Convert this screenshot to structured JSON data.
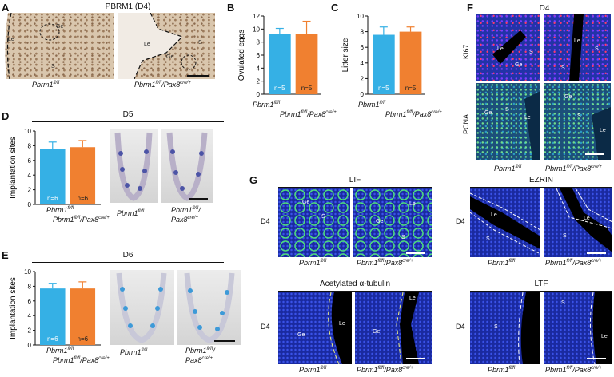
{
  "panels": {
    "A": {
      "letter": "A",
      "title": "PBRM1 (D4)",
      "genotypes": [
        "Pbrm1",
        "Pbrm1",
        "Pax8"
      ],
      "labels": {
        "le": "Le",
        "ge": "Ge",
        "s": "S"
      }
    },
    "B": {
      "letter": "B"
    },
    "C": {
      "letter": "C"
    },
    "D": {
      "letter": "D",
      "day": "D5"
    },
    "E": {
      "letter": "E",
      "day": "D6"
    },
    "F": {
      "letter": "F",
      "day": "D4",
      "rows": [
        "KI67",
        "PCNA"
      ]
    },
    "G": {
      "letter": "G",
      "stains": [
        "LIF",
        "EZRIN",
        "Acetylated α-tubulin",
        "LTF"
      ],
      "day": "D4"
    }
  },
  "genotype": {
    "ctrl": "Pbrm1",
    "ctrl_sup": "fl/fl",
    "ko_a": "Pbrm1",
    "ko_sup": "fl/fl",
    "ko_b": "/Pax8",
    "ko_b_sup": "cre/+",
    "ko_b_split": "/",
    "ko_c": "Pax8"
  },
  "colors": {
    "ctrl": "#35b0e5",
    "ko": "#f08030"
  },
  "chart_data": [
    {
      "type": "bar",
      "panel": "B",
      "categories": [
        "Pbrm1fl/fl",
        "Pbrm1fl/fl/Pax8cre/+"
      ],
      "values": [
        9.2,
        9.2
      ],
      "errors": [
        0.9,
        2.0
      ],
      "ylabel": "Ovulated eggs",
      "ylim": [
        0,
        12
      ],
      "yticks": [
        0,
        2,
        4,
        6,
        8,
        10,
        12
      ],
      "n": [
        "n=5",
        "n=5"
      ]
    },
    {
      "type": "bar",
      "panel": "C",
      "categories": [
        "Pbrm1fl/fl",
        "Pbrm1fl/fl/Pax8cre/+"
      ],
      "values": [
        7.6,
        8.0
      ],
      "errors": [
        1.0,
        0.6
      ],
      "ylabel": "Litter size",
      "ylim": [
        0,
        10
      ],
      "yticks": [
        0,
        2,
        4,
        6,
        8,
        10
      ],
      "n": [
        "n=5",
        "n=5"
      ]
    },
    {
      "type": "bar",
      "panel": "D",
      "categories": [
        "Pbrm1fl/fl",
        "Pbrm1fl/fl/Pax8cre/+"
      ],
      "values": [
        7.5,
        7.8
      ],
      "errors": [
        1.0,
        0.9
      ],
      "ylabel": "Implantation sites",
      "ylim": [
        0,
        10
      ],
      "yticks": [
        0,
        2,
        4,
        6,
        8,
        10
      ],
      "n": [
        "n=6",
        "n=6"
      ]
    },
    {
      "type": "bar",
      "panel": "E",
      "categories": [
        "Pbrm1fl/fl",
        "Pbrm1fl/fl/Pax8cre/+"
      ],
      "values": [
        7.7,
        7.7
      ],
      "errors": [
        0.7,
        0.9
      ],
      "ylabel": "Implantation sites",
      "ylim": [
        0,
        10
      ],
      "yticks": [
        0,
        2,
        4,
        6,
        8,
        10
      ],
      "n": [
        "n=6",
        "n=6"
      ]
    }
  ]
}
